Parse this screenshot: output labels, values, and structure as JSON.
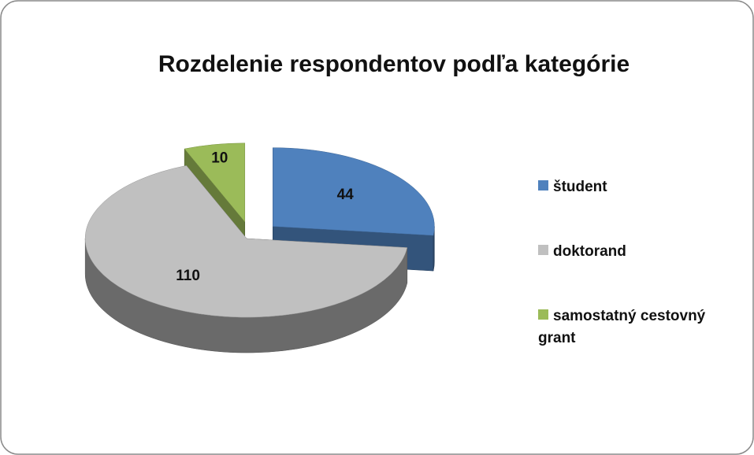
{
  "chart_data": {
    "type": "pie",
    "title": "Rozdelenie respondentov podľa kategórie",
    "categories": [
      "študent",
      "doktorand",
      "samostatný cestovný grant"
    ],
    "values": [
      44,
      110,
      10
    ],
    "colors": [
      "#4f81bd",
      "#c0c0c0",
      "#9bbb59"
    ]
  }
}
